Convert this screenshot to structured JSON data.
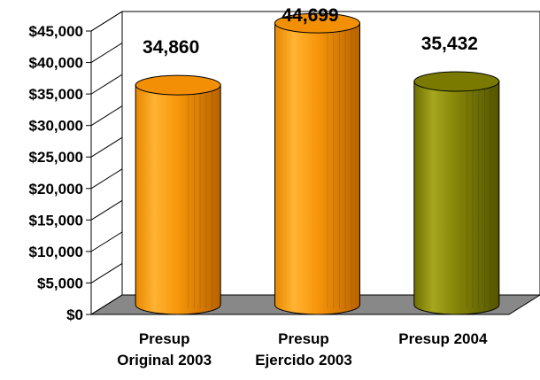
{
  "chart_data": {
    "type": "bar",
    "style": "3d-cylinder",
    "categories": [
      [
        "Presup",
        "Original 2003"
      ],
      [
        "Presup",
        "Ejercido 2003"
      ],
      [
        "Presup 2004"
      ]
    ],
    "values": [
      34860,
      44699,
      35432
    ],
    "data_labels": [
      "34,860",
      "44,699",
      "35,432"
    ],
    "colors": [
      "#f79a0c",
      "#f79a0c",
      "#8a8a0c"
    ],
    "ylim": [
      0,
      45000
    ],
    "yticks": [
      0,
      5000,
      10000,
      15000,
      20000,
      25000,
      30000,
      35000,
      40000,
      45000
    ],
    "ytick_labels": [
      "$0",
      "$5,000",
      "$10,000",
      "$15,000",
      "$20,000",
      "$25,000",
      "$30,000",
      "$35,000",
      "$40,000",
      "$45,000"
    ],
    "grid": false,
    "legend": "none"
  }
}
